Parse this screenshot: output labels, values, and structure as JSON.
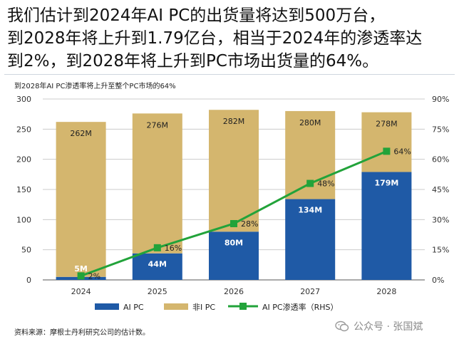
{
  "headline": {
    "line1": "我们估计到2024年AI PC的出货量将达到500万台，",
    "line2": "到2028年将上升到1.79亿台，相当于2024年的渗透率达",
    "line3": "到2%，到2028年将上升到PC市场出货量的64%。"
  },
  "subtitle": "到2028年AI PC渗透率将上升至整个PC市场的64%",
  "source": "资料来源：摩根士丹利研究公司的估计数。",
  "watermark": "公众号 · 张国斌",
  "colors": {
    "ai_pc": "#1f5aa6",
    "non_ai_pc": "#d4b66e",
    "line": "#22a33a",
    "grid": "#cccccc"
  },
  "chart_data": {
    "type": "bar",
    "stacked": true,
    "categories": [
      "2024",
      "2025",
      "2026",
      "2027",
      "2028"
    ],
    "series": [
      {
        "name": "AI PC",
        "values": [
          5,
          44,
          80,
          134,
          179
        ],
        "labels": [
          "5M",
          "44M",
          "80M",
          "134M",
          "179M"
        ]
      },
      {
        "name": "非I PC",
        "values": [
          257,
          232,
          202,
          146,
          99
        ],
        "labels": [
          "262M",
          "276M",
          "282M",
          "280M",
          "278M"
        ]
      },
      {
        "name": "AI PC渗透率（RHS）",
        "type": "line",
        "axis": "right",
        "values": [
          2,
          16,
          28,
          48,
          64
        ],
        "labels": [
          "2%",
          "16%",
          "28%",
          "48%",
          "64%"
        ]
      }
    ],
    "ylim": [
      0,
      300
    ],
    "yticks": [
      "0",
      "50",
      "100",
      "150",
      "200",
      "250",
      "300"
    ],
    "y2lim": [
      0,
      90
    ],
    "y2ticks": [
      "0%",
      "15%",
      "30%",
      "45%",
      "60%",
      "75%",
      "90%"
    ],
    "grid": true,
    "legend_position": "bottom"
  }
}
